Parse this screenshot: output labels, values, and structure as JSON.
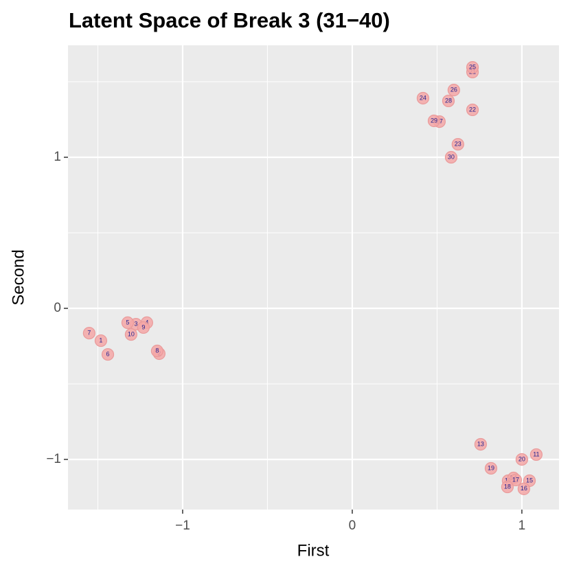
{
  "chart_data": {
    "type": "scatter",
    "title": "Latent Space of Break 3 (31−40)",
    "x_label": "First",
    "y_label": "Second",
    "xlim": [
      -1.676,
      1.219
    ],
    "ylim": [
      -1.332,
      1.741
    ],
    "xticks": [
      {
        "value": -1,
        "label": "−1"
      },
      0,
      1
    ],
    "yticks": [
      {
        "value": -1,
        "label": "−1"
      },
      0,
      1
    ],
    "x_minor_grid": [
      -1.5,
      -0.5,
      0.5
    ],
    "y_minor_grid": [
      -0.5,
      0.5,
      1.5
    ],
    "grid": true,
    "color": "#f4a7a7",
    "label_color": "#1f1f8f",
    "series": [
      {
        "labels": [
          "1",
          "2",
          "3",
          "4",
          "5",
          "6",
          "7",
          "8",
          "9",
          "10",
          "11",
          "12",
          "13",
          "14",
          "15",
          "16",
          "17",
          "18",
          "19",
          "20",
          "21",
          "22",
          "23",
          "24",
          "25",
          "26",
          "27",
          "28",
          "29",
          "30"
        ],
        "x": [
          -1.482,
          -1.138,
          -1.275,
          -1.211,
          -1.324,
          -1.441,
          -1.551,
          -1.15,
          -1.231,
          -1.304,
          1.085,
          0.919,
          0.757,
          0.951,
          1.045,
          1.012,
          0.964,
          0.915,
          0.818,
          1.0,
          0.709,
          0.709,
          0.623,
          0.417,
          0.709,
          0.599,
          0.514,
          0.567,
          0.482,
          0.583
        ],
        "values": [
          -0.214,
          -0.3,
          -0.105,
          -0.095,
          -0.095,
          -0.305,
          -0.164,
          -0.282,
          -0.127,
          -0.173,
          -0.968,
          -1.141,
          -0.9,
          -1.123,
          -1.141,
          -1.195,
          -1.136,
          -1.182,
          -1.059,
          -1.0,
          1.564,
          1.314,
          1.086,
          1.391,
          1.595,
          1.445,
          1.236,
          1.373,
          1.241,
          1.0
        ]
      }
    ]
  }
}
